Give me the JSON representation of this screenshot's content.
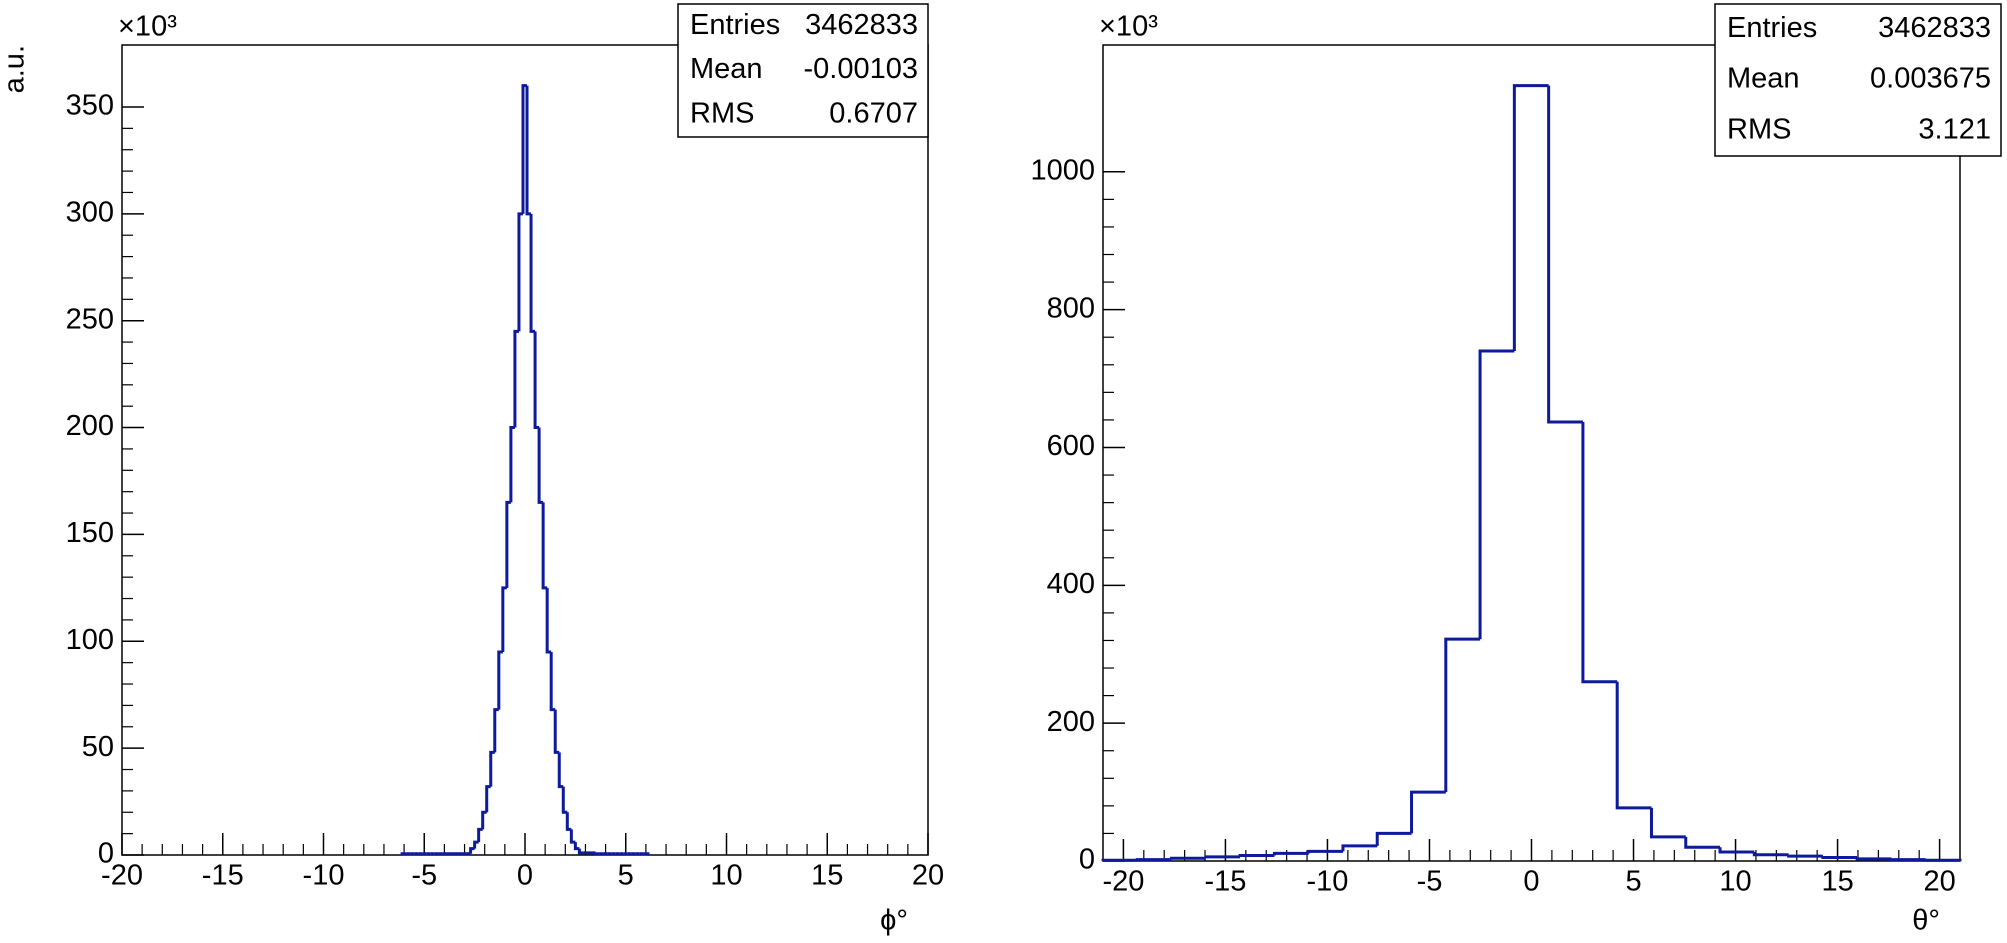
{
  "chart_data": [
    {
      "type": "histogram",
      "color": "#0d1a9c",
      "y_scale_label": "×10³",
      "y_label": "a.u.",
      "x_label": "ϕ°",
      "stats": [
        {
          "label": "Entries",
          "value": 3462833
        },
        {
          "label": "Mean",
          "value": -0.00103
        },
        {
          "label": "RMS",
          "value": 0.6707
        }
      ],
      "bins": [
        -6.1,
        -5.9,
        -5.7,
        -5.5,
        -5.3,
        -5.1,
        -4.9,
        -4.7,
        -4.5,
        -4.3,
        -4.1,
        -3.9,
        -3.7,
        -3.5,
        -3.3,
        -3.1,
        -2.9,
        -2.7,
        -2.5,
        -2.3,
        -2.1,
        -1.9,
        -1.7,
        -1.5,
        -1.3,
        -1.1,
        -0.9,
        -0.7,
        -0.5,
        -0.3,
        -0.1,
        0.1,
        0.3,
        0.5,
        0.7,
        0.9,
        1.1,
        1.3,
        1.5,
        1.7,
        1.9,
        2.1,
        2.3,
        2.5,
        2.7,
        2.9,
        3.1,
        3.3,
        3.5,
        3.7,
        3.9,
        4.1,
        4.3,
        4.5,
        4.7,
        4.9,
        5.1,
        5.3,
        5.5,
        5.7,
        5.9,
        6.1
      ],
      "values": [
        0.6,
        0.6,
        0.6,
        0.6,
        0.6,
        0.6,
        0.6,
        0.6,
        0.6,
        0.6,
        0.6,
        0.6,
        0.6,
        0.6,
        0.6,
        0.6,
        0.6,
        3,
        6,
        12,
        20,
        32,
        48,
        68,
        95,
        125,
        165,
        200,
        245,
        300,
        360,
        300,
        245,
        200,
        165,
        125,
        95,
        68,
        48,
        32,
        20,
        12,
        6,
        3,
        1,
        1,
        1,
        1,
        0.6,
        0.6,
        0.6,
        0.6,
        0.6,
        0.6,
        0.6,
        0.6,
        0.6,
        0.6,
        0.6,
        0.6,
        0.6
      ],
      "xlim": [
        -20,
        20
      ],
      "xticks": [
        -20,
        -15,
        -10,
        -5,
        0,
        5,
        10,
        15,
        20
      ],
      "ylim": [
        0,
        379
      ],
      "yticks": [
        0,
        50,
        100,
        150,
        200,
        250,
        300,
        350
      ]
    },
    {
      "type": "histogram",
      "color": "#0d1a9c",
      "y_scale_label": "×10³",
      "x_label": "θ°",
      "stats": [
        {
          "label": "Entries",
          "value": 3462833
        },
        {
          "label": "Mean",
          "value": 0.003675
        },
        {
          "label": "RMS",
          "value": 3.121
        }
      ],
      "bins": [
        -21,
        -19.32,
        -17.64,
        -15.96,
        -14.28,
        -12.6,
        -10.92,
        -9.24,
        -7.56,
        -5.88,
        -4.2,
        -2.52,
        -0.84,
        0.84,
        2.52,
        4.2,
        5.88,
        7.56,
        9.24,
        10.92,
        12.6,
        14.28,
        15.96,
        17.64,
        19.32,
        21
      ],
      "values": [
        1,
        2,
        4,
        6,
        8,
        11,
        14,
        22,
        40,
        100,
        322,
        740,
        1125,
        637,
        260,
        77,
        35,
        20,
        13,
        9,
        7,
        5,
        3,
        2,
        1
      ],
      "xlim": [
        -21,
        21
      ],
      "xticks": [
        -20,
        -15,
        -10,
        -5,
        0,
        5,
        10,
        15,
        20
      ],
      "ylim": [
        0,
        1184
      ],
      "yticks": [
        0,
        200,
        400,
        600,
        800,
        1000
      ]
    }
  ]
}
